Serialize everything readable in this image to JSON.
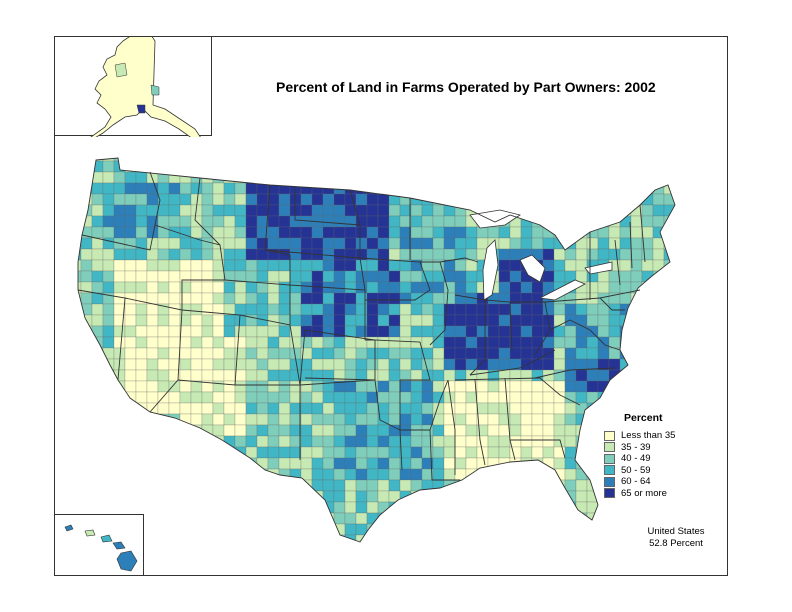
{
  "title": "Percent of Land in Farms Operated by Part Owners:  2002",
  "legend": {
    "title": "Percent",
    "items": [
      {
        "label": "Less than 35",
        "color": "#ffffcc"
      },
      {
        "label": "35 - 39",
        "color": "#c7e9b4"
      },
      {
        "label": "40 - 49",
        "color": "#7fcdbb"
      },
      {
        "label": "50 - 59",
        "color": "#41b6c4"
      },
      {
        "label": "60 - 64",
        "color": "#2c7fb8"
      },
      {
        "label": "65 or more",
        "color": "#253494"
      }
    ]
  },
  "summary": {
    "line1": "United States",
    "line2": "52.8 Percent"
  }
}
